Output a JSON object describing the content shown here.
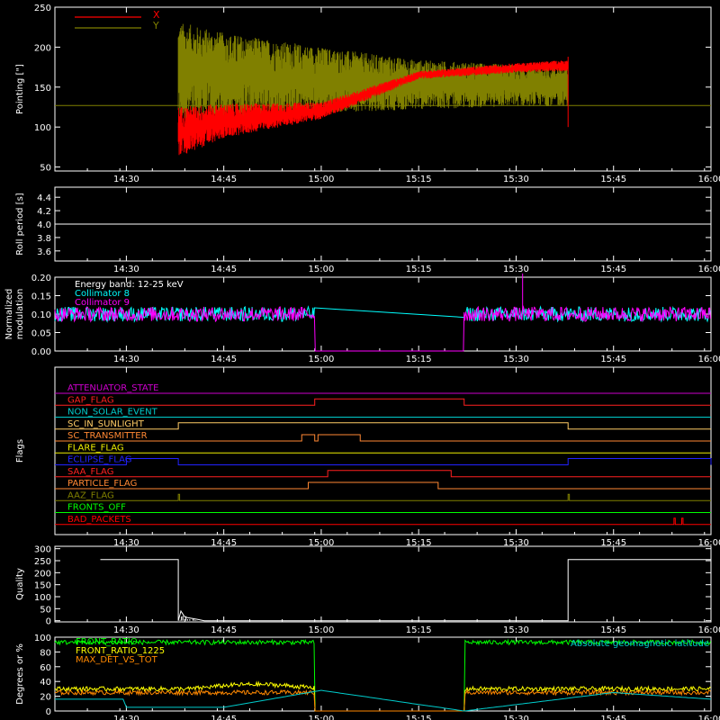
{
  "time_axis": {
    "tick_labels": [
      "14:30",
      "14:45",
      "15:00",
      "15:15",
      "15:30",
      "15:45",
      "16:00"
    ],
    "tick_minutes": [
      870,
      885,
      900,
      915,
      930,
      945,
      960
    ],
    "range_minutes": [
      859,
      960
    ]
  },
  "chart_data": [
    {
      "type": "line",
      "ylabel": "Pointing [\"]",
      "ylim": [
        45,
        250
      ],
      "yticks": [
        50,
        100,
        150,
        200,
        250
      ],
      "legend_position": "top-left",
      "legend": [
        {
          "name": "X",
          "color": "#ff0000"
        },
        {
          "name": "Y",
          "color": "#808000"
        }
      ],
      "baseline_value": 127,
      "active_span": [
        "14:38",
        "15:38"
      ],
      "series": [
        {
          "name": "Y",
          "color": "#808000",
          "upper_envelope": [
            [
              "14:38",
              232
            ],
            [
              "14:45",
              218
            ],
            [
              "15:00",
              200
            ],
            [
              "15:15",
              184
            ],
            [
              "15:30",
              178
            ],
            [
              "15:38",
              178
            ]
          ],
          "lower_envelope": [
            [
              "14:38",
              104
            ],
            [
              "14:45",
              112
            ],
            [
              "15:00",
              118
            ],
            [
              "15:15",
              122
            ],
            [
              "15:30",
              126
            ],
            [
              "15:38",
              126
            ]
          ]
        },
        {
          "name": "X",
          "color": "#ff0000",
          "upper_envelope": [
            [
              "14:38",
              126
            ],
            [
              "14:45",
              129
            ],
            [
              "15:00",
              131
            ],
            [
              "15:15",
              170
            ],
            [
              "15:30",
              180
            ],
            [
              "15:38",
              184
            ]
          ],
          "lower_envelope": [
            [
              "14:38",
              62
            ],
            [
              "14:45",
              86
            ],
            [
              "15:00",
              110
            ],
            [
              "15:15",
              160
            ],
            [
              "15:30",
              168
            ],
            [
              "15:38",
              170
            ]
          ]
        }
      ]
    },
    {
      "type": "line",
      "ylabel": "Roll period [s]",
      "ylim": [
        3.45,
        4.55
      ],
      "yticks": [
        3.6,
        3.8,
        4.0,
        4.2,
        4.4
      ],
      "series": [
        {
          "name": "",
          "color": "#ffffff",
          "constant": 4.0
        }
      ]
    },
    {
      "type": "line",
      "ylabel": "Normalized modulation",
      "ylim": [
        0,
        0.2
      ],
      "yticks": [
        0.0,
        0.05,
        0.1,
        0.15,
        0.2
      ],
      "annotations": [
        "Energy band: 12-25 keV",
        "Collimator 8",
        "Collimator 9"
      ],
      "gap": [
        "14:59",
        "15:22"
      ],
      "series": [
        {
          "name": "Collimator 8",
          "color": "#00ffff",
          "mean": 0.1,
          "spread": 0.02
        },
        {
          "name": "Collimator 9",
          "color": "#ff00ff",
          "mean": 0.1,
          "spread": 0.02,
          "gap_value": 0.0,
          "spike": [
            "15:31",
            0.21
          ]
        }
      ]
    },
    {
      "type": "line",
      "ylabel": "Flags",
      "flags": [
        {
          "name": "ATTENUATOR_STATE",
          "color": "#cc00cc",
          "on": []
        },
        {
          "name": "GAP_FLAG",
          "color": "#ff2020",
          "on": [
            [
              "14:59",
              "15:22"
            ]
          ]
        },
        {
          "name": "NON_SOLAR_EVENT",
          "color": "#00cccc",
          "on": []
        },
        {
          "name": "SC_IN_SUNLIGHT",
          "color": "#ffcc66",
          "on": [
            [
              "14:38",
              "15:38"
            ]
          ]
        },
        {
          "name": "SC_TRANSMITTER",
          "color": "#ff8833",
          "on": [
            [
              "14:57",
              "14:59"
            ],
            [
              "14:59.5",
              "15:06"
            ]
          ]
        },
        {
          "name": "FLARE_FLAG",
          "color": "#eeee00",
          "on": []
        },
        {
          "name": "ECLIPSE_FLAG",
          "color": "#2222ff",
          "on": [
            [
              "14:30",
              "14:38"
            ],
            [
              "15:38",
              "16:00"
            ]
          ]
        },
        {
          "name": "SAA_FLAG",
          "color": "#ff2020",
          "on": [
            [
              "15:01",
              "15:20"
            ]
          ]
        },
        {
          "name": "PARTICLE_FLAG",
          "color": "#ff8833",
          "on": [
            [
              "14:58",
              "15:18"
            ]
          ]
        },
        {
          "name": "AAZ_FLAG",
          "color": "#808000",
          "on": [
            [
              "14:38",
              "14:38.2"
            ],
            [
              "15:38",
              "15:38.2"
            ]
          ]
        },
        {
          "name": "FRONTS_OFF",
          "color": "#00ff00",
          "on": []
        },
        {
          "name": "BAD_PACKETS",
          "color": "#ff0000",
          "on": [
            [
              "15:54.3",
              "15:54.5"
            ],
            [
              "15:55.5",
              "15:55.7"
            ]
          ]
        }
      ]
    },
    {
      "type": "line",
      "ylabel": "Quality",
      "ylim": [
        -5,
        310
      ],
      "yticks": [
        0,
        50,
        100,
        150,
        200,
        250,
        300
      ],
      "series": [
        {
          "name": "",
          "color": "#ffffff",
          "points": [
            [
              "14:26",
              255
            ],
            [
              "14:38",
              255
            ],
            [
              "14:38",
              0
            ],
            [
              "14:38.4",
              40
            ],
            [
              "14:39",
              15
            ],
            [
              "14:40",
              10
            ],
            [
              "14:41",
              5
            ],
            [
              "14:42",
              0
            ],
            [
              "15:38",
              0
            ],
            [
              "15:38",
              255
            ],
            [
              "16:00",
              255
            ]
          ]
        }
      ]
    },
    {
      "type": "line",
      "ylabel": "Degrees or %",
      "ylim": [
        0,
        100
      ],
      "yticks": [
        0,
        20,
        40,
        60,
        80,
        100
      ],
      "legend_position": "top-left",
      "annotation_right": "Absolute geomagnetic latitude",
      "gap": [
        "14:59",
        "15:22"
      ],
      "series": [
        {
          "name": "FRONT_RATIO",
          "color": "#00ff00",
          "mean": 93
        },
        {
          "name": "FRONT_RATIO_1225",
          "color": "#ffff00",
          "mean": 30
        },
        {
          "name": "MAX_DET_VS_TOT",
          "color": "#ff8800",
          "mean": 25
        },
        {
          "name": "Absolute geomagnetic latitude",
          "color": "#00cccc",
          "points": [
            [
              "14:30",
              5
            ],
            [
              "14:45",
              5
            ],
            [
              "15:00",
              28
            ],
            [
              "15:22",
              0
            ],
            [
              "15:45",
              25
            ],
            [
              "16:00",
              16
            ]
          ]
        }
      ]
    }
  ]
}
